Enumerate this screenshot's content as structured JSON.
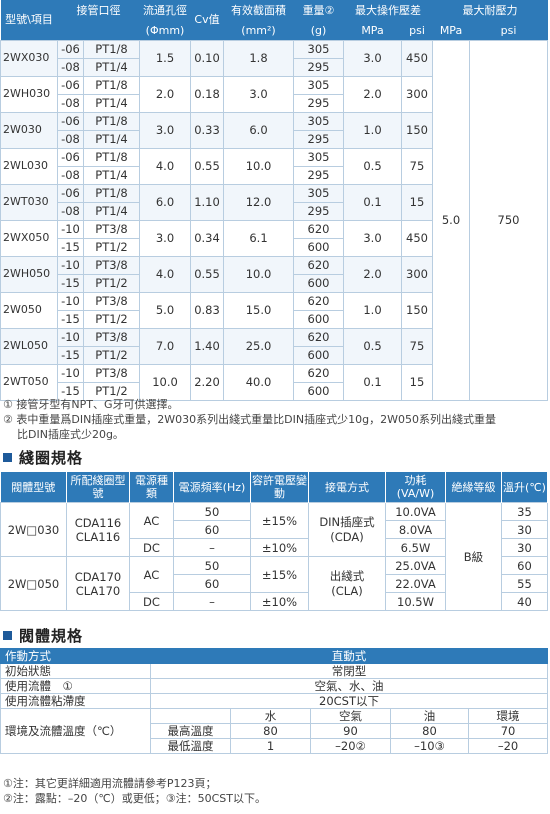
{
  "spec_table": {
    "headers": {
      "model": "型號\\項目",
      "port": "接管口徑",
      "port_unit": "",
      "orifice": "流通孔徑",
      "orifice_unit": "(Φmm)",
      "cv": "Cv值",
      "area": "有效截面積",
      "area_unit": "(mm²)",
      "weight": "重量②",
      "weight_unit": "(g)",
      "max_op": "最大操作壓差",
      "max_op_mpa": "MPa",
      "max_op_psi": "psi",
      "max_press": "最大耐壓力",
      "max_press_mpa": "MPa",
      "max_press_psi": "psi"
    },
    "groups": [
      {
        "model": "2WX030",
        "rows": [
          {
            "suffix": "-06",
            "port": "PT1/8",
            "weight": "305"
          },
          {
            "suffix": "-08",
            "port": "PT1/4",
            "weight": "295"
          }
        ],
        "orifice": "1.5",
        "cv": "0.10",
        "area": "1.8",
        "mpa": "3.0",
        "psi": "450"
      },
      {
        "model": "2WH030",
        "rows": [
          {
            "suffix": "-06",
            "port": "PT1/8",
            "weight": "305"
          },
          {
            "suffix": "-08",
            "port": "PT1/4",
            "weight": "295"
          }
        ],
        "orifice": "2.0",
        "cv": "0.18",
        "area": "3.0",
        "mpa": "2.0",
        "psi": "300"
      },
      {
        "model": "2W030",
        "rows": [
          {
            "suffix": "-06",
            "port": "PT1/8",
            "weight": "305"
          },
          {
            "suffix": "-08",
            "port": "PT1/4",
            "weight": "295"
          }
        ],
        "orifice": "3.0",
        "cv": "0.33",
        "area": "6.0",
        "mpa": "1.0",
        "psi": "150"
      },
      {
        "model": "2WL030",
        "rows": [
          {
            "suffix": "-06",
            "port": "PT1/8",
            "weight": "305"
          },
          {
            "suffix": "-08",
            "port": "PT1/4",
            "weight": "295"
          }
        ],
        "orifice": "4.0",
        "cv": "0.55",
        "area": "10.0",
        "mpa": "0.5",
        "psi": "75"
      },
      {
        "model": "2WT030",
        "rows": [
          {
            "suffix": "-06",
            "port": "PT1/8",
            "weight": "305"
          },
          {
            "suffix": "-08",
            "port": "PT1/4",
            "weight": "295"
          }
        ],
        "orifice": "6.0",
        "cv": "1.10",
        "area": "12.0",
        "mpa": "0.1",
        "psi": "15"
      },
      {
        "model": "2WX050",
        "rows": [
          {
            "suffix": "-10",
            "port": "PT3/8",
            "weight": "620"
          },
          {
            "suffix": "-15",
            "port": "PT1/2",
            "weight": "600"
          }
        ],
        "orifice": "3.0",
        "cv": "0.34",
        "area": "6.1",
        "mpa": "3.0",
        "psi": "450"
      },
      {
        "model": "2WH050",
        "rows": [
          {
            "suffix": "-10",
            "port": "PT3/8",
            "weight": "620"
          },
          {
            "suffix": "-15",
            "port": "PT1/2",
            "weight": "600"
          }
        ],
        "orifice": "4.0",
        "cv": "0.55",
        "area": "10.0",
        "mpa": "2.0",
        "psi": "300"
      },
      {
        "model": "2W050",
        "rows": [
          {
            "suffix": "-10",
            "port": "PT3/8",
            "weight": "620"
          },
          {
            "suffix": "-15",
            "port": "PT1/2",
            "weight": "600"
          }
        ],
        "orifice": "5.0",
        "cv": "0.83",
        "area": "15.0",
        "mpa": "1.0",
        "psi": "150"
      },
      {
        "model": "2WL050",
        "rows": [
          {
            "suffix": "-10",
            "port": "PT3/8",
            "weight": "620"
          },
          {
            "suffix": "-15",
            "port": "PT1/2",
            "weight": "600"
          }
        ],
        "orifice": "7.0",
        "cv": "1.40",
        "area": "25.0",
        "mpa": "0.5",
        "psi": "75"
      },
      {
        "model": "2WT050",
        "rows": [
          {
            "suffix": "-10",
            "port": "PT3/8",
            "weight": "620"
          },
          {
            "suffix": "-15",
            "port": "PT1/2",
            "weight": "600"
          }
        ],
        "orifice": "10.0",
        "cv": "2.20",
        "area": "40.0",
        "mpa": "0.1",
        "psi": "15"
      }
    ],
    "max_press_mpa": "5.0",
    "max_press_psi": "750"
  },
  "notes1": [
    "① 接管牙型有NPT、G牙可供選擇。",
    "② 表中重量爲DIN插座式重量，2W030系列出綫式重量比DIN插座式少10g，2W050系列出綫式重量",
    "比DIN插座式少20g。"
  ],
  "coil_section": {
    "title": "綫圈規格",
    "headers": [
      "閥體型號",
      "所配綫圈型號",
      "電源種類",
      "電源頻率(Hz)",
      "容許電壓變動",
      "接電方式",
      "功耗(VA/W)",
      "絶緣等級",
      "溫升(℃)"
    ],
    "groups": [
      {
        "model": "2W□030",
        "coil": "CDA116\nCLA116",
        "rows": [
          {
            "power": "AC",
            "freq": "50",
            "volt": "±15%",
            "watt": "10.0VA",
            "temp": "35"
          },
          {
            "power": "",
            "freq": "60",
            "volt": "",
            "watt": "8.0VA",
            "temp": "30"
          },
          {
            "power": "DC",
            "freq": "–",
            "volt": "±10%",
            "watt": "6.5W",
            "temp": "30"
          }
        ]
      },
      {
        "model": "2W□050",
        "coil": "CDA170\nCLA170",
        "rows": [
          {
            "power": "AC",
            "freq": "50",
            "volt": "±15%",
            "watt": "25.0VA",
            "temp": "60"
          },
          {
            "power": "",
            "freq": "60",
            "volt": "",
            "watt": "22.0VA",
            "temp": "55"
          },
          {
            "power": "DC",
            "freq": "–",
            "volt": "±10%",
            "watt": "10.5W",
            "temp": "40"
          }
        ]
      }
    ],
    "connect_din": "DIN插座式\n(CDA)",
    "connect_lead": "出綫式\n(CLA)",
    "insulation": "B級"
  },
  "valve_section": {
    "title": "閥體規格",
    "rows": [
      {
        "label": "作動方式",
        "value": "直動式"
      },
      {
        "label": "初始狀態",
        "value": "常閉型"
      },
      {
        "label": "使用流體　①",
        "value": "空氣、水、油"
      },
      {
        "label": "使用流體粘滯度",
        "value": "20CST以下"
      }
    ],
    "temp_label": "環境及流體溫度（℃）",
    "temp_cols": [
      "水",
      "空氣",
      "油",
      "環境"
    ],
    "max_label": "最高溫度",
    "max_vals": [
      "80",
      "90",
      "80",
      "70"
    ],
    "min_label": "最低溫度",
    "min_vals": [
      "1",
      "–20②",
      "–10③",
      "–20"
    ]
  },
  "notes2": [
    "①注：其它更詳細適用流體請參考P123頁；",
    "②注：露點：–20（℃）或更低；③注：50CST以下。"
  ],
  "colors": {
    "header_bg": "#2e7ab8",
    "section_square": "#1e5a9a",
    "border": "#b8cde0"
  }
}
